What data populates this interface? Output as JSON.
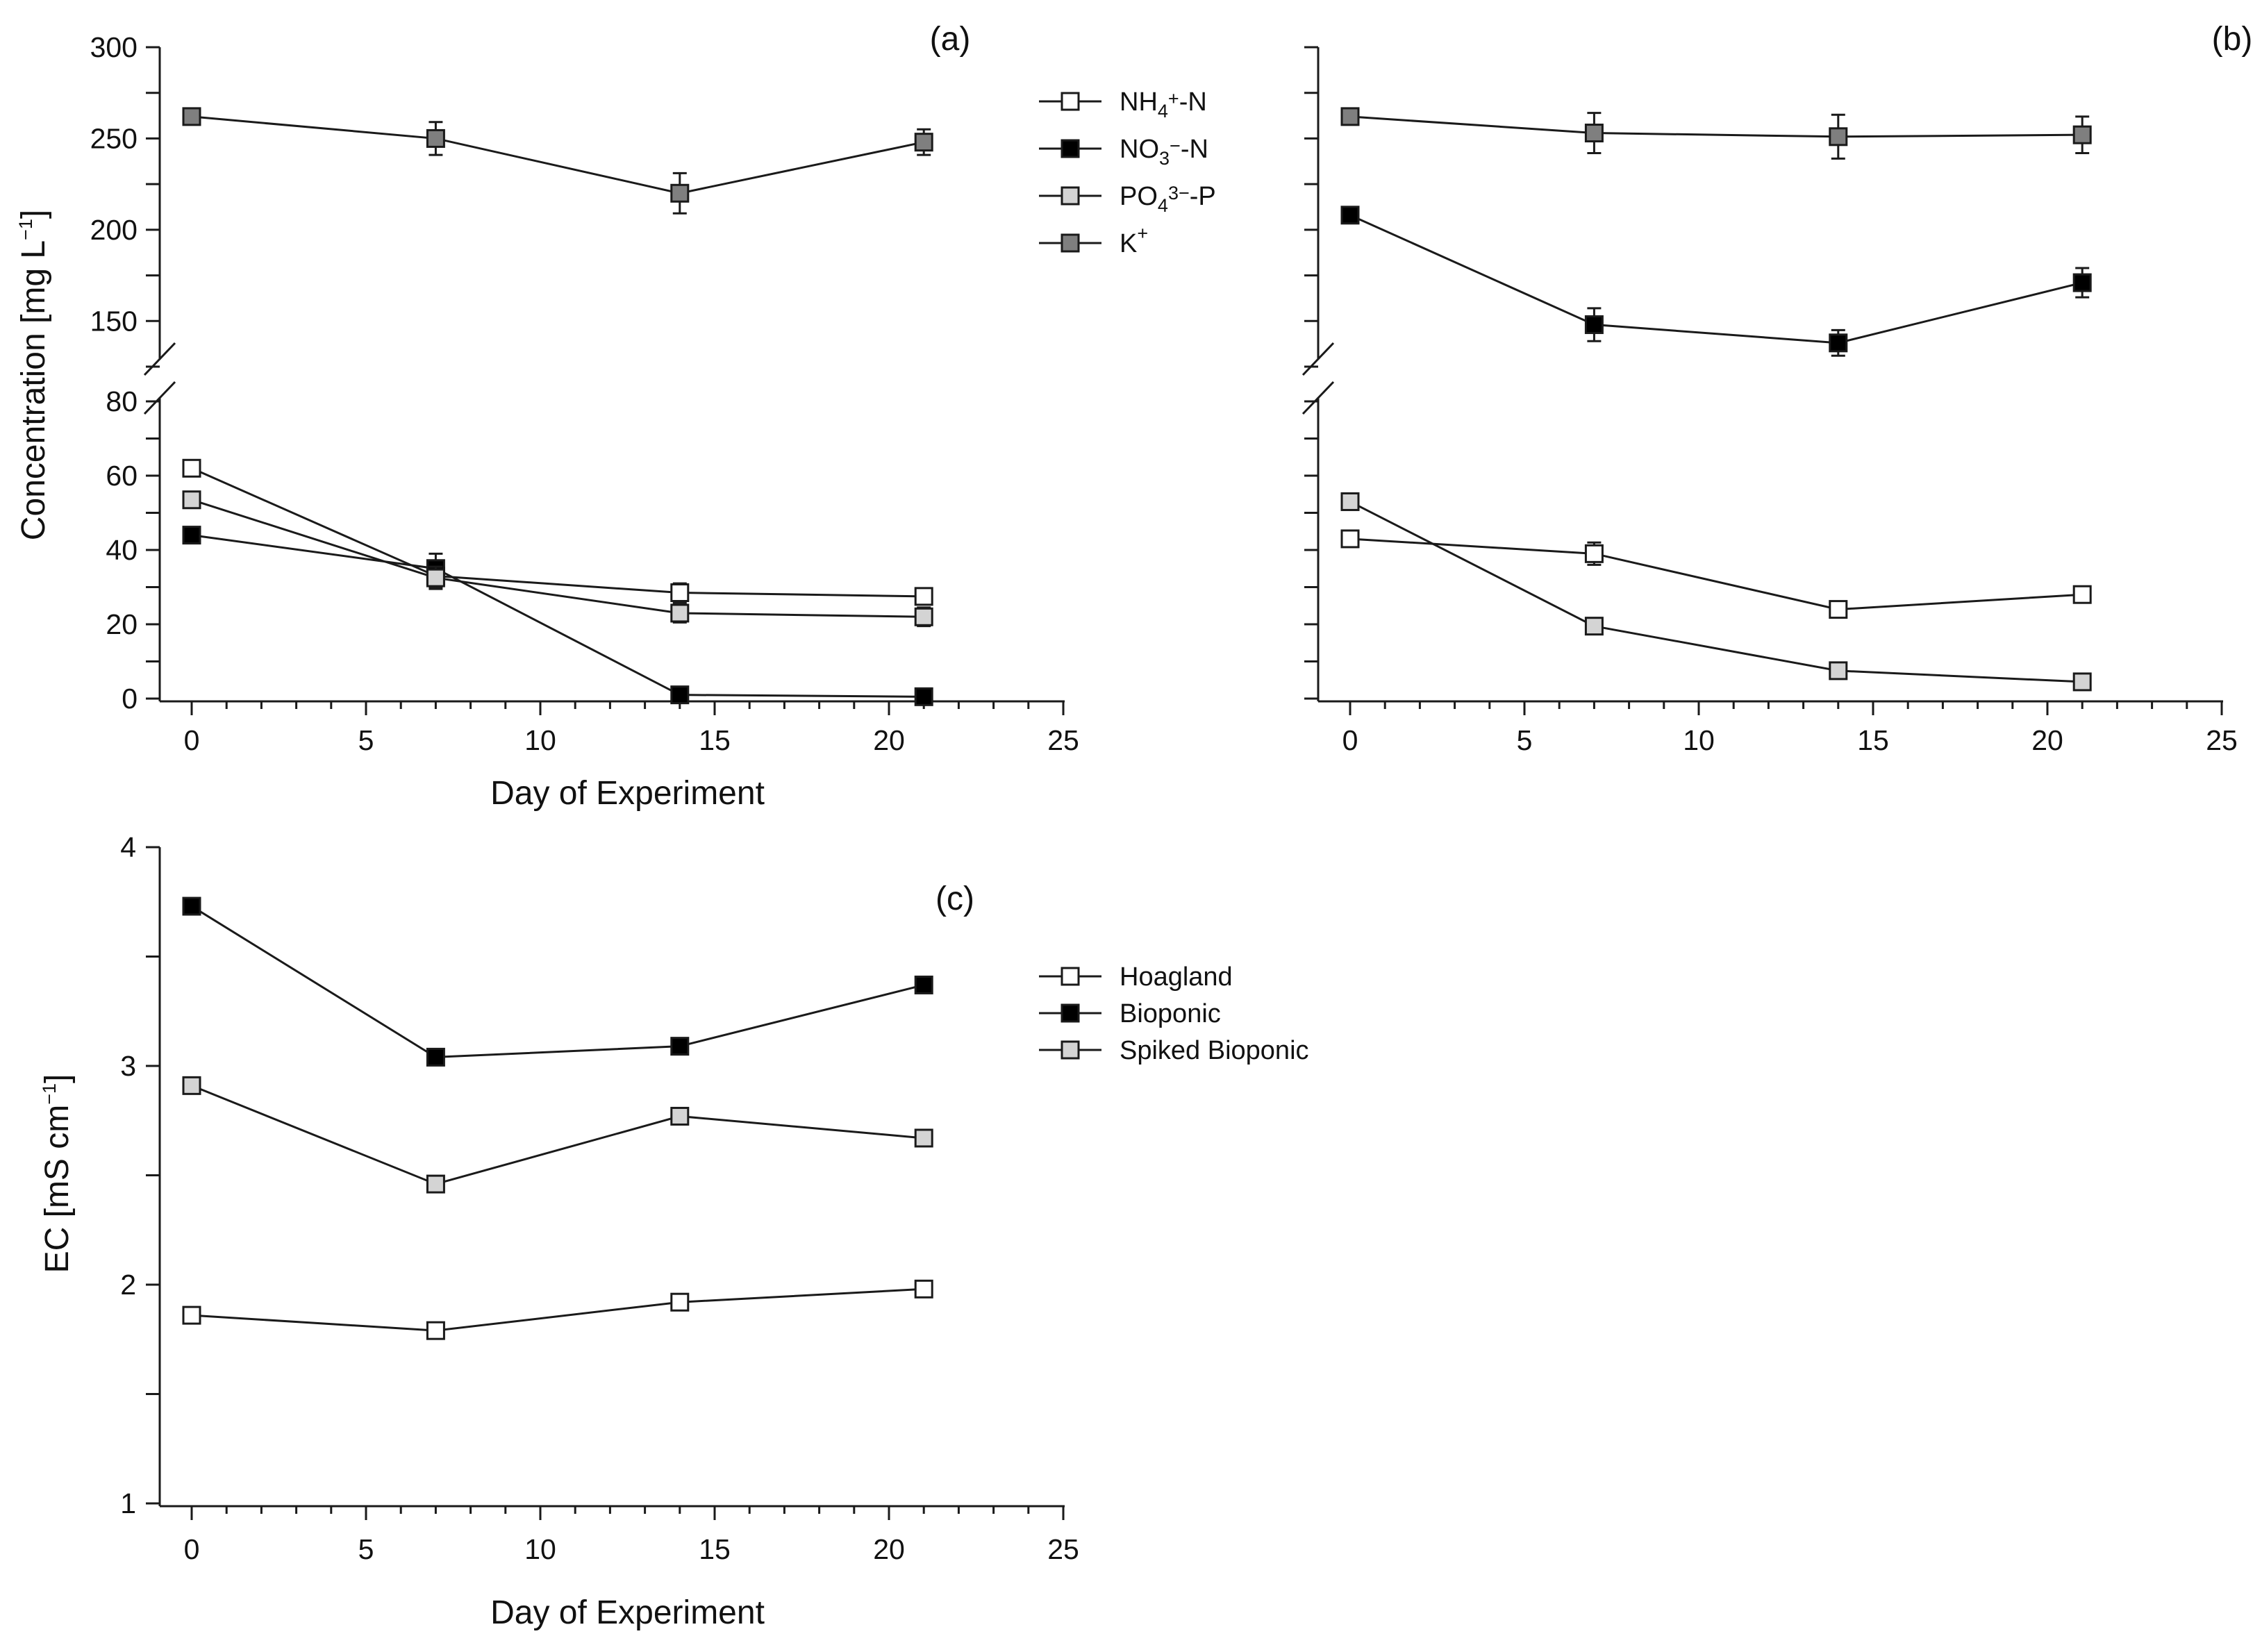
{
  "chart_data": [
    {
      "panel": "(a)",
      "type": "line",
      "xlabel": "Day of Experiment",
      "ylabel": "Concentration [mg L⁻¹]",
      "xlim": [
        0,
        25
      ],
      "xticks": [
        "0",
        "5",
        "10",
        "15",
        "20",
        "25"
      ],
      "y_axis_break": true,
      "ylim_lower": [
        0,
        80
      ],
      "ylim_upper": [
        125,
        300
      ],
      "yticks_lower": [
        "0",
        "20",
        "40",
        "60",
        "80"
      ],
      "yticks_upper": [
        "150",
        "200",
        "250",
        "300"
      ],
      "legend_position": "top-right",
      "x": [
        0,
        7,
        14,
        21
      ],
      "series": [
        {
          "name": "NH4+-N",
          "fill": "#ffffff",
          "values": [
            62,
            33,
            28.5,
            27.5
          ],
          "errors": [
            0,
            3,
            2.5,
            2
          ]
        },
        {
          "name": "NO3−-N",
          "fill": "#000000",
          "values": [
            44,
            35,
            1,
            0.5
          ],
          "errors": [
            0,
            4,
            0.5,
            0.3
          ]
        },
        {
          "name": "PO43−-P",
          "fill": "#d4d4d4",
          "values": [
            53.5,
            32.5,
            23,
            22
          ],
          "errors": [
            0,
            3,
            2.5,
            2.5
          ]
        },
        {
          "name": "K+",
          "fill": "#7f7f7f",
          "values": [
            262,
            250,
            220,
            248
          ],
          "errors": [
            0,
            9,
            11,
            7
          ]
        }
      ]
    },
    {
      "panel": "(b)",
      "type": "line",
      "xlim": [
        0,
        25
      ],
      "xticks": [
        "0",
        "5",
        "10",
        "15",
        "20",
        "25"
      ],
      "y_axis_break": true,
      "ylim_lower": [
        0,
        80
      ],
      "ylim_upper": [
        125,
        300
      ],
      "x": [
        0,
        7,
        14,
        21
      ],
      "series": [
        {
          "name": "NH4+-N",
          "fill": "#ffffff",
          "values": [
            43,
            39,
            24,
            28
          ],
          "errors": [
            0,
            3,
            2,
            2
          ]
        },
        {
          "name": "NO3−-N",
          "fill": "#000000",
          "values": [
            208,
            148,
            138,
            171
          ],
          "errors": [
            0,
            9,
            7,
            8
          ]
        },
        {
          "name": "PO43−-P",
          "fill": "#d4d4d4",
          "values": [
            53,
            19.5,
            7.5,
            4.5
          ],
          "errors": [
            0,
            2,
            1.5,
            1.5
          ]
        },
        {
          "name": "K+",
          "fill": "#7f7f7f",
          "values": [
            262,
            253,
            251,
            252
          ],
          "errors": [
            0,
            11,
            12,
            10
          ]
        }
      ]
    },
    {
      "panel": "(c)",
      "type": "line",
      "xlabel": "Day of Experiment",
      "ylabel": "EC [mS cm⁻¹]",
      "xlim": [
        0,
        25
      ],
      "ylim": [
        1,
        4
      ],
      "xticks": [
        "0",
        "5",
        "10",
        "15",
        "20",
        "25"
      ],
      "yticks": [
        "1",
        "2",
        "3",
        "4"
      ],
      "legend_position": "right",
      "x": [
        0,
        7,
        14,
        21
      ],
      "series": [
        {
          "name": "Hoagland",
          "fill": "#ffffff",
          "values": [
            1.86,
            1.79,
            1.92,
            1.98
          ]
        },
        {
          "name": "Bioponic",
          "fill": "#000000",
          "values": [
            3.73,
            3.04,
            3.09,
            3.37
          ]
        },
        {
          "name": "Spiked Bioponic",
          "fill": "#d4d4d4",
          "values": [
            2.91,
            2.46,
            2.77,
            2.67
          ]
        }
      ]
    }
  ]
}
